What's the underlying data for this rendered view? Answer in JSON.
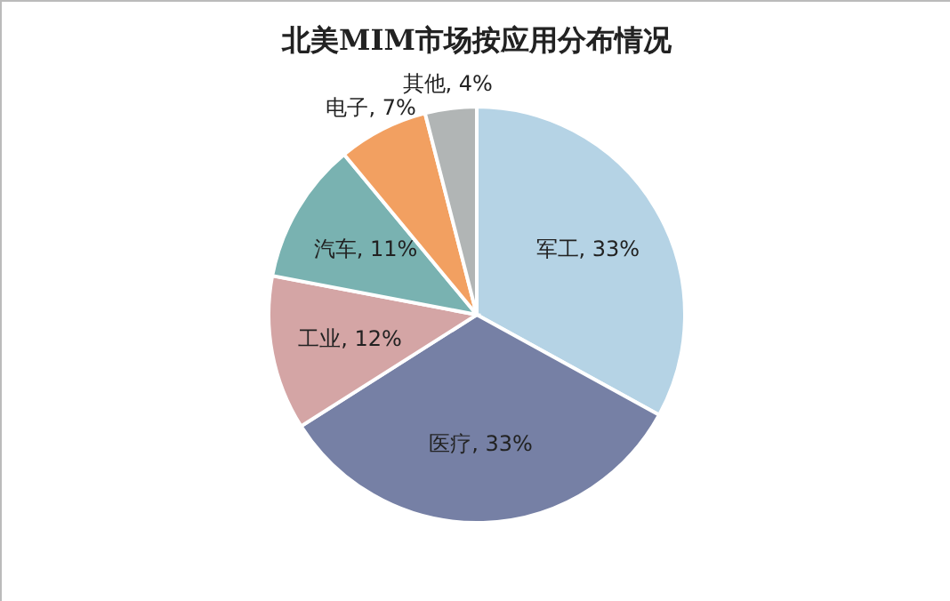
{
  "chart_data": {
    "type": "pie",
    "title": "北美MIM市场按应用分布情况",
    "categories": [
      "军工",
      "医疗",
      "工业",
      "汽车",
      "电子",
      "其他"
    ],
    "values": [
      33,
      33,
      12,
      11,
      7,
      4
    ],
    "value_labels": [
      "33%",
      "33%",
      "12%",
      "11%",
      "7%",
      "4%"
    ],
    "colors": [
      "#b5d3e5",
      "#7680a5",
      "#d4a5a5",
      "#79b2b1",
      "#f2a061",
      "#b1b5b5"
    ],
    "legend": false
  }
}
